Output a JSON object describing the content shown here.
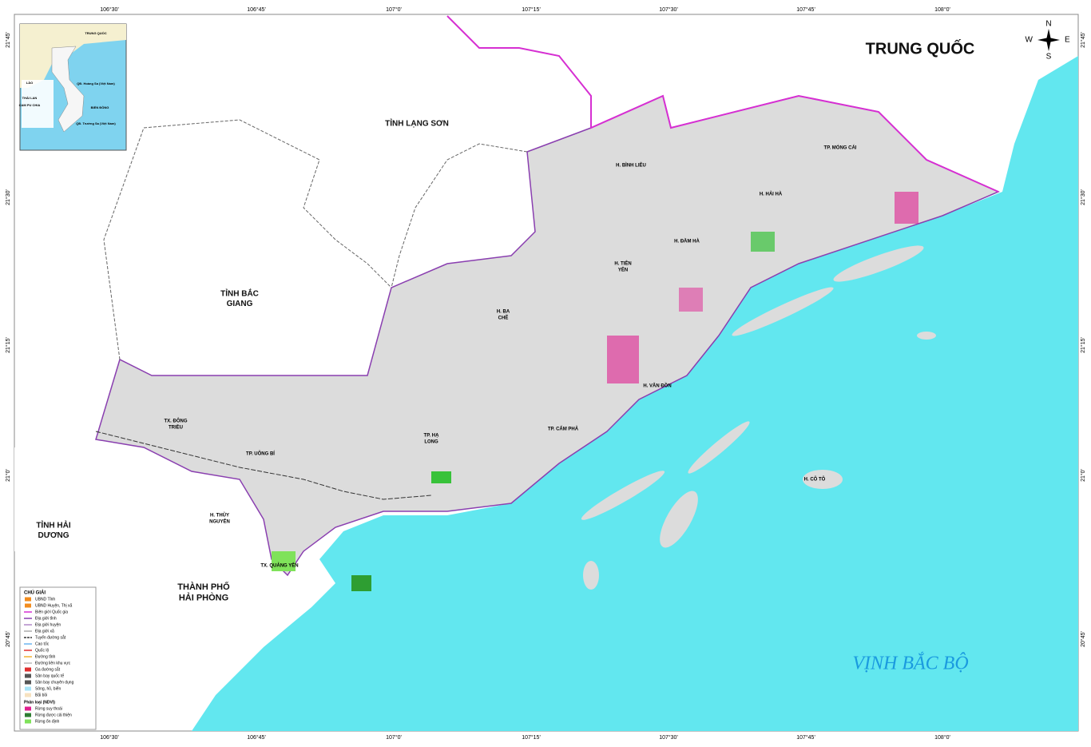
{
  "coordinates": {
    "top": [
      "106°30'",
      "106°45'",
      "107°0'",
      "107°15'",
      "107°30'",
      "107°45'",
      "108°0'"
    ],
    "bottom": [
      "106°30'",
      "106°45'",
      "107°0'",
      "107°15'",
      "107°30'",
      "107°45'",
      "108°0'"
    ],
    "left": [
      "21°45'",
      "21°30'",
      "21°15'",
      "21°0'",
      "20°45'"
    ],
    "right": [
      "21°45'",
      "21°30'",
      "21°15'",
      "21°0'",
      "20°45'"
    ]
  },
  "regions": [
    {
      "lines": [
        "TRUNG QUỐC"
      ]
    },
    {
      "lines": [
        "TỈNH LẠNG SƠN"
      ]
    },
    {
      "lines": [
        "TỈNH BẮC",
        "GIANG"
      ]
    },
    {
      "lines": [
        "TỈNH HẢI",
        "DƯƠNG"
      ]
    },
    {
      "lines": [
        "THÀNH PHỐ",
        "HẢI PHÒNG"
      ]
    },
    {
      "lines": [
        "VỊNH BẮC BỘ"
      ]
    }
  ],
  "districts": [
    {
      "lines": [
        "H. BÌNH LIÊU"
      ]
    },
    {
      "lines": [
        "TP. MÓNG CÁI"
      ]
    },
    {
      "lines": [
        "H. HẢI HÀ"
      ]
    },
    {
      "lines": [
        "H. ĐẦM HÀ"
      ]
    },
    {
      "lines": [
        "H. TIÊN",
        "YÊN"
      ]
    },
    {
      "lines": [
        "H. BA",
        "CHẼ"
      ]
    },
    {
      "lines": [
        "H. VÂN ĐỒN"
      ]
    },
    {
      "lines": [
        "TP. CẨM PHẢ"
      ]
    },
    {
      "lines": [
        "TP. HẠ",
        "LONG"
      ]
    },
    {
      "lines": [
        "TP. UÔNG BÍ"
      ]
    },
    {
      "lines": [
        "TX. ĐÔNG",
        "TRIỀU"
      ]
    },
    {
      "lines": [
        "H. THỦY",
        "NGUYÊN"
      ]
    },
    {
      "lines": [
        "TX. QUẢNG YÊN"
      ]
    },
    {
      "lines": [
        "H. CÔ TÔ"
      ]
    }
  ],
  "compass": [
    "N",
    "E",
    "S",
    "W"
  ],
  "inset": [
    "TRUNG QUỐC",
    "LÀO",
    "THÁI LAN",
    "CAM PU CHIA",
    "BIỂN ĐÔNG",
    "QĐ. Hoàng Sa (Việt Nam)",
    "QĐ. Trường Sa (Việt Nam)"
  ],
  "legend": {
    "title": "CHÚ GIẢI",
    "items": [
      "UBND Tỉnh",
      "UBND Huyện, Thị xã",
      "Biên giới Quốc gia",
      "Địa giới tỉnh",
      "Địa giới huyện",
      "Địa giới xã",
      "Tuyến đường sắt",
      "Cao tốc",
      "Quốc lộ",
      "Đường tỉnh",
      "Đường liên khu vực",
      "Ga đường sắt",
      "Sân bay quốc tế",
      "Sân bay chuyên dụng",
      "Sông, hồ, biển",
      "Bãi bồi"
    ],
    "ndvi_title": "Phân loại (NDVI)",
    "ndvi_items": [
      "Rừng suy thoái",
      "Rừng được cải thiện",
      "Rừng ổn định"
    ]
  }
}
